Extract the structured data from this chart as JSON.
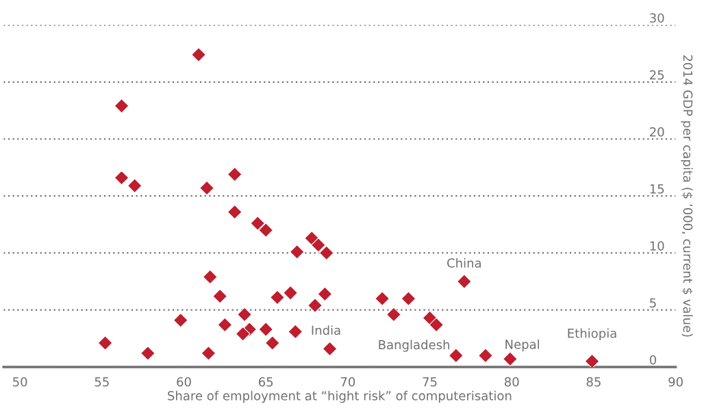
{
  "chart_data": {
    "type": "scatter",
    "xlabel": "Share of employment at “hight risk” of computerisation",
    "ylabel": "2014 GDP per capita ($ ’000, current $ value)",
    "x": [
      60.9,
      56.2,
      56.2,
      57.0,
      61.4,
      63.1,
      63.1,
      64.5,
      65.0,
      67.8,
      68.2,
      68.7,
      66.9,
      61.6,
      62.2,
      65.7,
      66.5,
      68.6,
      68.0,
      63.7,
      59.8,
      62.5,
      64.0,
      63.6,
      65.0,
      66.8,
      65.4,
      55.2,
      57.8,
      61.5,
      68.9,
      72.1,
      72.8,
      73.7,
      75.0,
      75.4,
      77.1,
      76.6,
      78.4,
      79.9,
      84.9
    ],
    "values": [
      27.4,
      22.9,
      16.6,
      15.9,
      15.7,
      16.9,
      13.6,
      12.6,
      12.0,
      11.3,
      10.7,
      10.0,
      10.1,
      7.9,
      6.2,
      6.1,
      6.5,
      6.4,
      5.4,
      4.6,
      4.1,
      3.7,
      3.3,
      2.9,
      3.3,
      3.1,
      2.1,
      2.1,
      1.2,
      1.2,
      1.6,
      6.0,
      4.6,
      6.0,
      4.3,
      3.7,
      7.5,
      1.0,
      1.0,
      0.7,
      0.5
    ],
    "color": "#be1e2d",
    "marker": "diamond",
    "xlim": [
      49,
      90
    ],
    "xticks": [
      50,
      55,
      60,
      65,
      70,
      75,
      80,
      85,
      90
    ],
    "ylim": [
      0,
      30
    ],
    "yticks": [
      0,
      5,
      10,
      15,
      20,
      25,
      30
    ],
    "grid": "y",
    "annotations": [
      {
        "text": "India",
        "x": 68.9,
        "y": 1.6
      },
      {
        "text": "China",
        "x": 77.1,
        "y": 7.5
      },
      {
        "text": "Bangladesh",
        "x": 76.6,
        "y": 1.0
      },
      {
        "text": "Nepal",
        "x": 79.9,
        "y": 0.7
      },
      {
        "text": "Ethiopia",
        "x": 84.9,
        "y": 0.5
      }
    ]
  }
}
